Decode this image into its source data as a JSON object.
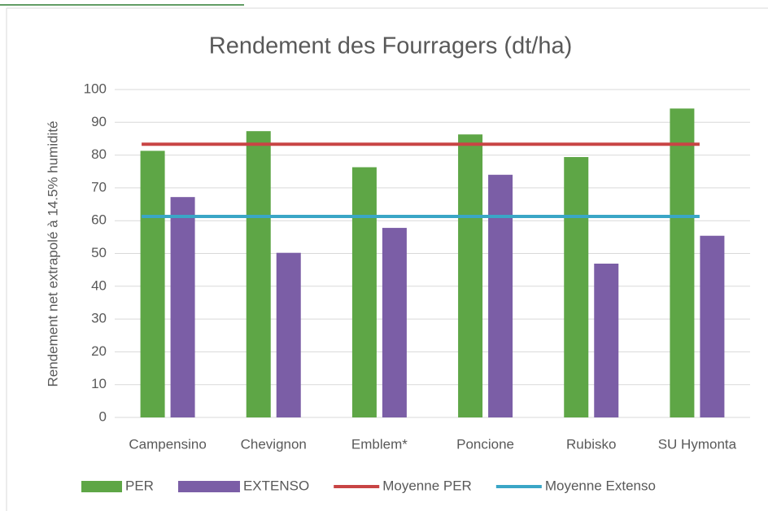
{
  "chart_data": {
    "type": "bar",
    "title": "Rendement des Fourragers (dt/ha)",
    "y_label": "Rendement net extrapolé à 14.5% humidité",
    "categories": [
      "Campensino",
      "Chevignon",
      "Emblem*",
      "Poncione",
      "Rubisko",
      "SU Hymonta"
    ],
    "series": [
      {
        "name": "PER",
        "type": "bar",
        "color": "#5ea646",
        "values": [
          81.3,
          87.3,
          76.3,
          86.3,
          79.4,
          94.2
        ]
      },
      {
        "name": "EXTENSO",
        "type": "bar",
        "color": "#7b5ea6",
        "values": [
          67.2,
          50.2,
          57.8,
          74.0,
          46.9,
          55.4
        ]
      },
      {
        "name": "Moyenne PER",
        "type": "line",
        "color": "#c84444",
        "values": [
          83.3,
          83.3,
          83.3,
          83.3,
          83.3,
          83.3
        ]
      },
      {
        "name": "Moyenne Extenso",
        "type": "line",
        "color": "#3aa6c6",
        "values": [
          61.3,
          61.3,
          61.3,
          61.3,
          61.3,
          61.3
        ]
      }
    ],
    "ylim": [
      0,
      100
    ],
    "yticks": [
      0,
      10,
      20,
      30,
      40,
      50,
      60,
      70,
      80,
      90,
      100
    ],
    "grid": true
  }
}
